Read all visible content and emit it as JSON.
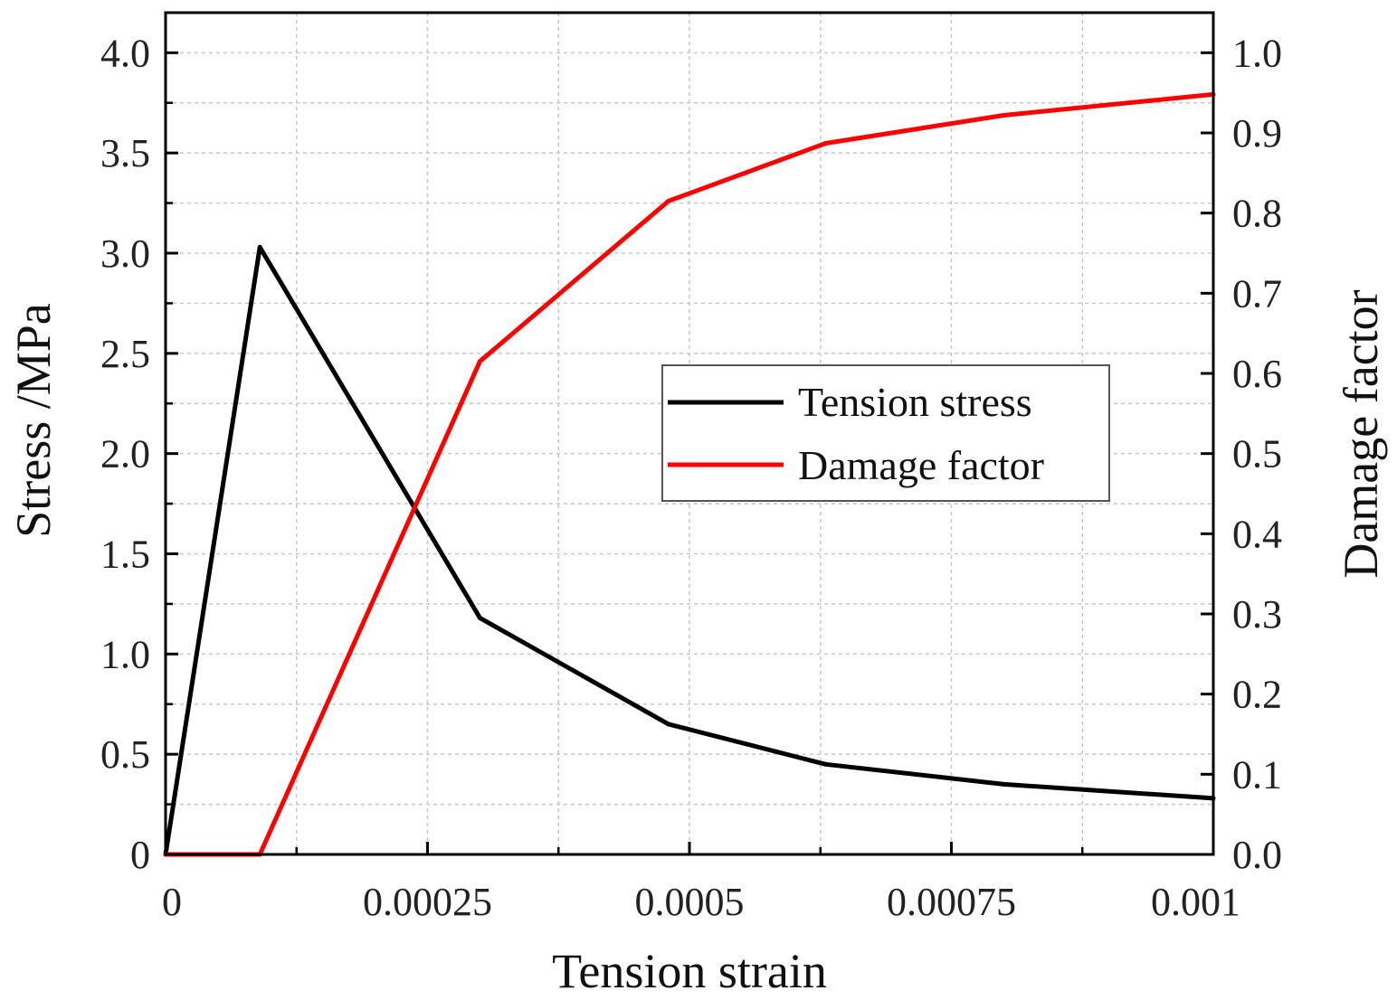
{
  "chart_data": {
    "type": "line",
    "xlabel": "Tension strain",
    "ylabel_left": "Stress /MPa",
    "ylabel_right": "Damage factor",
    "xlim": [
      0,
      0.001
    ],
    "ylim_left": [
      0,
      4.2
    ],
    "ylim_right": [
      0,
      1.05
    ],
    "grid": true,
    "x_ticks": [
      0,
      0.00025,
      0.0005,
      0.00075,
      0.001
    ],
    "x_tick_labels": [
      "0",
      "0.00025",
      "0.0005",
      "0.00075",
      "0.001"
    ],
    "x_minor_ticks": [
      0.000125,
      0.000375,
      0.000625,
      0.000875
    ],
    "y_left_ticks": [
      0,
      0.5,
      1.0,
      1.5,
      2.0,
      2.5,
      3.0,
      3.5,
      4.0
    ],
    "y_left_tick_labels": [
      "0",
      "0.5",
      "1.0",
      "1.5",
      "2.0",
      "2.5",
      "3.0",
      "3.5",
      "4.0"
    ],
    "y_left_minor_ticks": [
      0.25,
      0.75,
      1.25,
      1.75,
      2.25,
      2.75,
      3.25,
      3.75
    ],
    "y_right_ticks": [
      0,
      0.1,
      0.2,
      0.3,
      0.4,
      0.5,
      0.6,
      0.7,
      0.8,
      0.9,
      1.0
    ],
    "y_right_tick_labels": [
      "0.0",
      "0.1",
      "0.2",
      "0.3",
      "0.4",
      "0.5",
      "0.6",
      "0.7",
      "0.8",
      "0.9",
      "1.0"
    ],
    "legend_position": "center-right",
    "series": [
      {
        "name": "Tension stress",
        "axis": "left",
        "color": "#000000",
        "x": [
          0,
          9e-05,
          0.0003,
          0.00048,
          0.00063,
          0.0008,
          0.001
        ],
        "y": [
          0,
          3.03,
          1.18,
          0.65,
          0.45,
          0.35,
          0.28
        ]
      },
      {
        "name": "Damage factor",
        "axis": "right",
        "color": "#ff0000",
        "x": [
          0,
          9e-05,
          0.0003,
          0.00048,
          0.00063,
          0.0008,
          0.001
        ],
        "y": [
          0,
          0,
          0.615,
          0.815,
          0.887,
          0.922,
          0.948
        ]
      }
    ]
  }
}
